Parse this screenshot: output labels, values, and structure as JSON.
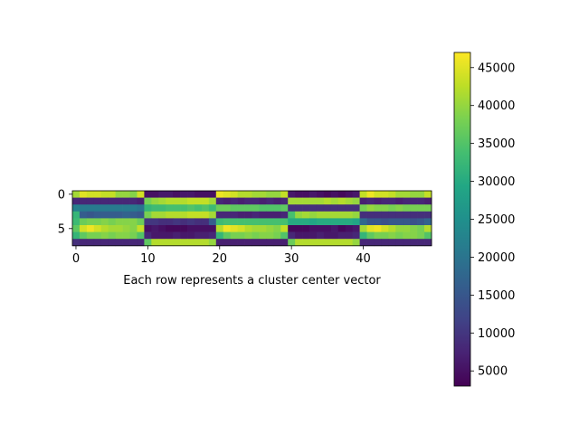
{
  "chart_data": {
    "type": "heatmap",
    "title": "",
    "xlabel": "Each row represents a cluster center vector",
    "ylabel": "",
    "n_rows": 8,
    "n_cols": 50,
    "x_ticks": [
      0,
      10,
      20,
      30,
      40
    ],
    "y_ticks": [
      0,
      5
    ],
    "colormap": "viridis",
    "colorbar": {
      "min": 3000,
      "max": 47000,
      "ticks": [
        5000,
        10000,
        15000,
        20000,
        25000,
        30000,
        35000,
        40000,
        45000
      ]
    },
    "values": [
      [
        41000,
        45000,
        44000,
        44000,
        43000,
        43000,
        40000,
        40000,
        39000,
        44000,
        5000,
        5000,
        6000,
        6000,
        5000,
        6000,
        6000,
        5000,
        5000,
        5000,
        46000,
        45000,
        44000,
        42000,
        42000,
        41000,
        41000,
        40000,
        40000,
        43000,
        6000,
        5000,
        5000,
        6000,
        5000,
        4000,
        5000,
        4000,
        5000,
        6000,
        43000,
        46000,
        44000,
        44000,
        43000,
        41000,
        41000,
        40000,
        40000,
        43000
      ],
      [
        8000,
        8000,
        8000,
        8000,
        8000,
        8000,
        8000,
        8000,
        8000,
        7000,
        38000,
        40000,
        41000,
        42000,
        42000,
        42000,
        43000,
        43000,
        43000,
        41000,
        8000,
        7000,
        8000,
        7000,
        8000,
        8000,
        7000,
        8000,
        7000,
        8000,
        41000,
        41000,
        41000,
        41000,
        41000,
        42000,
        41000,
        42000,
        41000,
        40000,
        7000,
        8000,
        7000,
        8000,
        8000,
        7000,
        8000,
        8000,
        8000,
        7000
      ],
      [
        22000,
        21000,
        21000,
        21000,
        21000,
        21000,
        21000,
        21000,
        21000,
        20000,
        32000,
        33000,
        33000,
        34000,
        34000,
        34000,
        35000,
        34000,
        35000,
        33000,
        37000,
        37000,
        36000,
        36000,
        36000,
        36000,
        35000,
        35000,
        35000,
        36000,
        9000,
        9000,
        9000,
        9000,
        9000,
        9000,
        9000,
        9000,
        9000,
        9000,
        38000,
        40000,
        39000,
        39000,
        38000,
        39000,
        38000,
        38000,
        38000,
        38000
      ],
      [
        32000,
        16000,
        15000,
        16000,
        16000,
        16000,
        16000,
        17000,
        16000,
        15000,
        38000,
        41000,
        41000,
        42000,
        42000,
        42000,
        43000,
        43000,
        43000,
        41000,
        8000,
        8000,
        8000,
        7000,
        7000,
        8000,
        7000,
        7000,
        7000,
        8000,
        34000,
        40000,
        41000,
        40000,
        41000,
        41000,
        41000,
        41000,
        41000,
        40000,
        9000,
        9000,
        9000,
        9000,
        9000,
        9000,
        9000,
        9000,
        9000,
        9000
      ],
      [
        33000,
        37000,
        38000,
        38000,
        39000,
        38000,
        39000,
        39000,
        39000,
        37000,
        10000,
        10000,
        9000,
        9000,
        10000,
        9000,
        10000,
        9000,
        9000,
        16000,
        33000,
        34000,
        34000,
        34000,
        34000,
        34000,
        34000,
        34000,
        34000,
        34000,
        30000,
        30000,
        30000,
        29000,
        30000,
        30000,
        30000,
        30000,
        30000,
        29000,
        18000,
        15000,
        15000,
        14000,
        15000,
        15000,
        15000,
        14000,
        15000,
        17000
      ],
      [
        36000,
        44000,
        46000,
        44000,
        42000,
        41000,
        41000,
        40000,
        39000,
        43000,
        5000,
        6000,
        5000,
        4000,
        4000,
        4000,
        5000,
        5000,
        5000,
        5000,
        42000,
        46000,
        45000,
        44000,
        42000,
        41000,
        41000,
        40000,
        39000,
        43000,
        4000,
        4000,
        4000,
        5000,
        5000,
        5000,
        6000,
        4000,
        5000,
        6000,
        41000,
        45000,
        46000,
        44000,
        42000,
        40000,
        40000,
        39000,
        38000,
        42000
      ],
      [
        32000,
        36000,
        38000,
        38000,
        39000,
        38000,
        39000,
        39000,
        38000,
        35000,
        8000,
        6000,
        6000,
        6000,
        7000,
        6000,
        6000,
        7000,
        7000,
        8000,
        32000,
        36000,
        38000,
        38000,
        39000,
        38000,
        39000,
        39000,
        38000,
        35000,
        8000,
        6000,
        6000,
        6000,
        7000,
        6000,
        6000,
        7000,
        7000,
        8000,
        32000,
        36000,
        38000,
        38000,
        39000,
        38000,
        39000,
        39000,
        38000,
        35000
      ],
      [
        9000,
        8000,
        8000,
        8000,
        8000,
        8000,
        8000,
        8000,
        8000,
        8000,
        36000,
        42000,
        42000,
        42000,
        42000,
        42000,
        42000,
        42000,
        42000,
        40000,
        7000,
        7000,
        7000,
        7000,
        7000,
        7000,
        7000,
        7000,
        7000,
        7000,
        37000,
        42000,
        42000,
        42000,
        42000,
        42000,
        42000,
        42000,
        42000,
        40000,
        8000,
        8000,
        8000,
        8000,
        8000,
        8000,
        8000,
        8000,
        8000,
        8000
      ]
    ]
  }
}
